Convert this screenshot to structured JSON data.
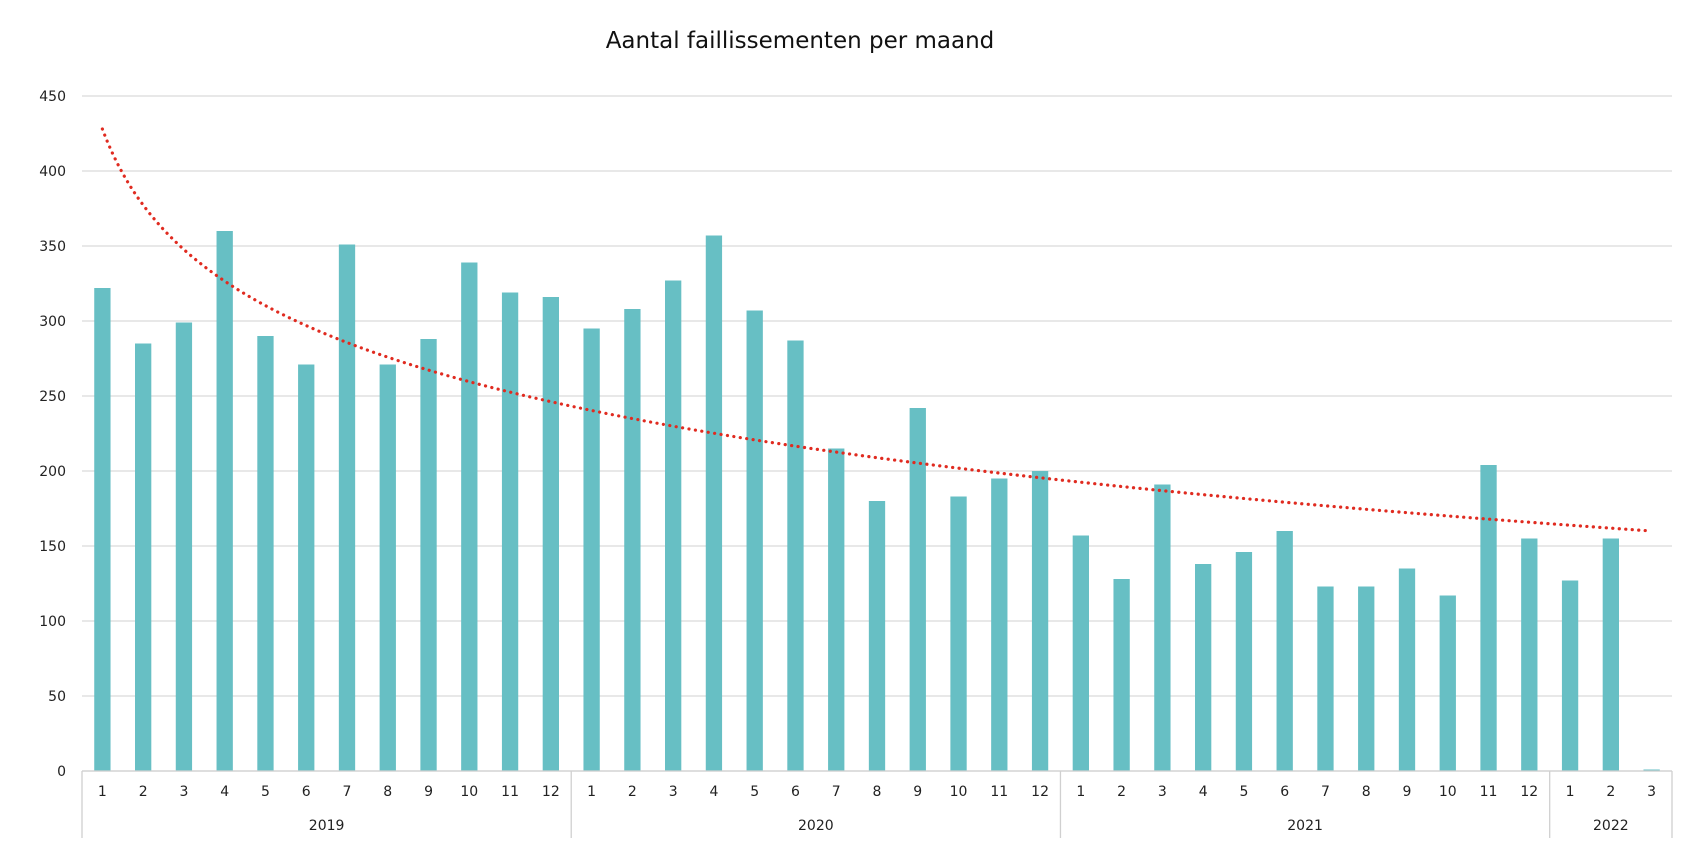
{
  "chart_data": {
    "type": "bar",
    "title": "Aantal faillissementen per maand",
    "xlabel": "",
    "ylabel": "",
    "ylim": [
      0,
      450
    ],
    "yticks": [
      0,
      50,
      100,
      150,
      200,
      250,
      300,
      350,
      400,
      450
    ],
    "grid": true,
    "legend": "none",
    "groups": [
      {
        "label": "2019",
        "months": [
          "1",
          "2",
          "3",
          "4",
          "5",
          "6",
          "7",
          "8",
          "9",
          "10",
          "11",
          "12"
        ]
      },
      {
        "label": "2020",
        "months": [
          "1",
          "2",
          "3",
          "4",
          "5",
          "6",
          "7",
          "8",
          "9",
          "10",
          "11",
          "12"
        ]
      },
      {
        "label": "2021",
        "months": [
          "1",
          "2",
          "3",
          "4",
          "5",
          "6",
          "7",
          "8",
          "9",
          "10",
          "11",
          "12"
        ]
      },
      {
        "label": "2022",
        "months": [
          "1",
          "2",
          "3"
        ]
      }
    ],
    "values": [
      322,
      285,
      299,
      360,
      290,
      271,
      351,
      271,
      288,
      339,
      319,
      316,
      295,
      308,
      327,
      357,
      307,
      287,
      215,
      180,
      242,
      183,
      195,
      200,
      157,
      128,
      191,
      138,
      146,
      160,
      123,
      123,
      135,
      117,
      204,
      155,
      127,
      155,
      1
    ],
    "trendline": {
      "type": "logarithmic",
      "start_value": 428,
      "end_value": 160,
      "style": "dotted"
    },
    "colors": {
      "bar": "#67bfc4",
      "trendline": "#e02b20"
    }
  }
}
